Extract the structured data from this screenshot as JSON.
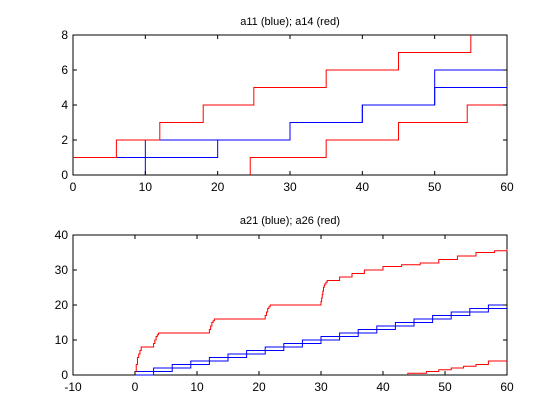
{
  "chart_data": [
    {
      "type": "line",
      "title": "a11 (blue); a14 (red)",
      "xlabel": "",
      "ylabel": "",
      "xlim": [
        0,
        60
      ],
      "ylim": [
        0,
        8
      ],
      "xticks": [
        0,
        10,
        20,
        30,
        40,
        50,
        60
      ],
      "yticks": [
        0,
        2,
        4,
        6,
        8
      ],
      "grid": false,
      "step": true,
      "series": [
        {
          "color": "#0000ff",
          "x": [
            10,
            10,
            30,
            40,
            50,
            60
          ],
          "y": [
            0,
            2,
            3,
            4,
            5,
            5
          ]
        },
        {
          "color": "#0000ff",
          "x": [
            0,
            10,
            20,
            30,
            40,
            50,
            60
          ],
          "y": [
            1,
            1,
            2,
            3,
            4,
            6,
            6
          ]
        },
        {
          "color": "#ff0000",
          "x": [
            0,
            6,
            12,
            18,
            25,
            35,
            45,
            55,
            55
          ],
          "y": [
            1,
            2,
            3,
            4,
            5,
            6,
            7,
            8,
            8
          ]
        },
        {
          "color": "#ff0000",
          "x": [
            24.5,
            24.5,
            35,
            45,
            54.5,
            60
          ],
          "y": [
            0,
            1,
            2,
            3,
            4,
            4
          ]
        }
      ]
    },
    {
      "type": "line",
      "title": "a21 (blue); a26 (red)",
      "xlabel": "",
      "ylabel": "",
      "xlim": [
        -10,
        60
      ],
      "ylim": [
        0,
        40
      ],
      "xticks": [
        -10,
        0,
        10,
        20,
        30,
        40,
        50,
        60
      ],
      "yticks": [
        0,
        10,
        20,
        30,
        40
      ],
      "grid": false,
      "step": true,
      "series": [
        {
          "color": "#0000ff",
          "x": [
            0,
            3,
            6,
            9,
            12,
            15,
            18,
            21,
            24,
            27,
            30,
            33,
            36,
            39,
            42,
            45,
            48,
            51,
            54,
            57,
            60
          ],
          "y": [
            1,
            2,
            3,
            4,
            5,
            6,
            7,
            8,
            9,
            10,
            11,
            12,
            13,
            14,
            15,
            16,
            17,
            18,
            19,
            20,
            20
          ]
        },
        {
          "color": "#0000ff",
          "x": [
            0,
            0,
            3,
            6,
            9,
            12,
            15,
            18,
            21,
            24,
            27,
            30,
            33,
            36,
            39,
            42,
            45,
            48,
            51,
            54,
            57,
            60
          ],
          "y": [
            0,
            0,
            1,
            2,
            3,
            4,
            5,
            6,
            7,
            8,
            9,
            10,
            11,
            12,
            13,
            14,
            15,
            16,
            17,
            18,
            19,
            19
          ]
        },
        {
          "color": "#ff0000",
          "x": [
            0,
            0.2,
            0.4,
            0.6,
            0.8,
            1,
            3,
            3.2,
            3.4,
            3.6,
            3.8,
            12,
            12.2,
            12.4,
            12.6,
            12.8,
            21,
            21.2,
            21.4,
            21.6,
            21.8,
            30,
            30.1,
            30.2,
            30.3,
            30.4,
            30.5,
            30.6,
            30.8,
            31,
            33,
            35,
            37,
            40,
            43,
            46,
            49,
            52,
            55,
            58,
            60
          ],
          "y": [
            1,
            3,
            5,
            6,
            7,
            8,
            9,
            10,
            11,
            11.5,
            12,
            13,
            14,
            15,
            15.5,
            16,
            17,
            18,
            19,
            19.5,
            20,
            21,
            22,
            23,
            24,
            25,
            25.5,
            26,
            26.5,
            27,
            28,
            29,
            30,
            31,
            31.5,
            32,
            33,
            34,
            35,
            35.5,
            36
          ]
        },
        {
          "color": "#ff0000",
          "x": [
            44,
            44,
            47,
            49,
            51,
            53,
            55,
            57,
            60
          ],
          "y": [
            0,
            0.5,
            1,
            1.5,
            2,
            2.5,
            3,
            4,
            4
          ]
        }
      ]
    }
  ]
}
